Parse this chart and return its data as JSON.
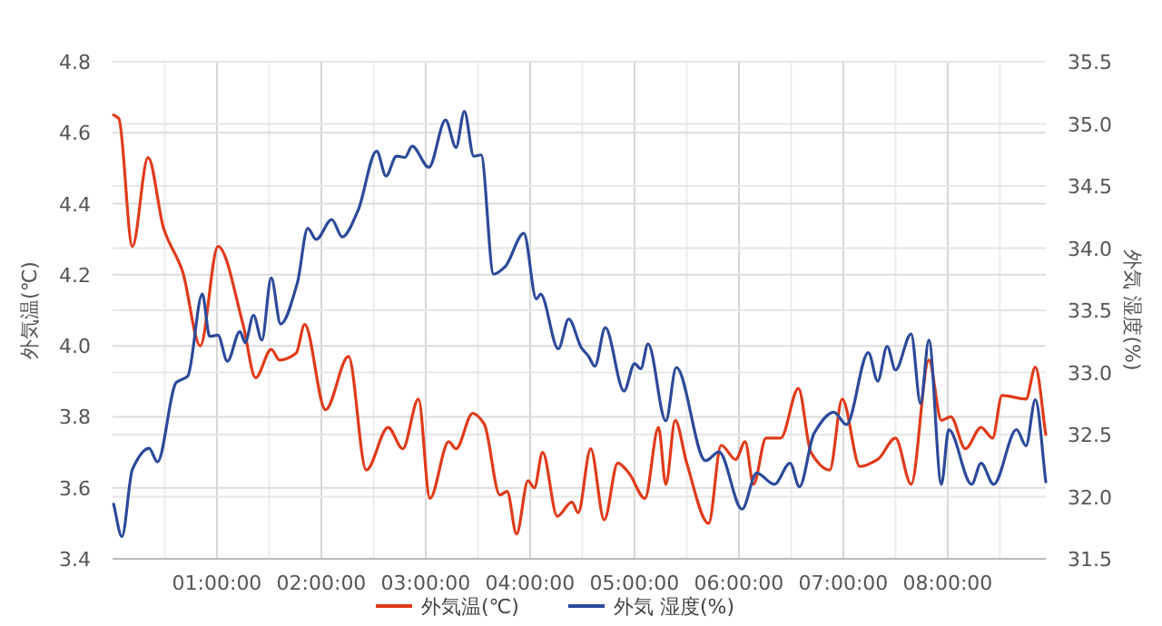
{
  "chart_data": {
    "type": "line",
    "ylabel": "外気温(℃)",
    "y2label": "外気 湿度(%)",
    "xlim": [
      0,
      8.94
    ],
    "xticks": [
      {
        "value": 0.5,
        "label": null
      },
      {
        "value": 1,
        "label": "01:00:00"
      },
      {
        "value": 1.5,
        "label": null
      },
      {
        "value": 2,
        "label": "02:00:00"
      },
      {
        "value": 2.5,
        "label": null
      },
      {
        "value": 3,
        "label": "03:00:00"
      },
      {
        "value": 3.5,
        "label": null
      },
      {
        "value": 4,
        "label": "04:00:00"
      },
      {
        "value": 4.5,
        "label": null
      },
      {
        "value": 5,
        "label": "05:00:00"
      },
      {
        "value": 5.5,
        "label": null
      },
      {
        "value": 6,
        "label": "06:00:00"
      },
      {
        "value": 6.5,
        "label": null
      },
      {
        "value": 7,
        "label": "07:00:00"
      },
      {
        "value": 7.5,
        "label": null
      },
      {
        "value": 8,
        "label": "08:00:00"
      },
      {
        "value": 8.5,
        "label": null
      }
    ],
    "ylim": [
      3.4,
      4.8
    ],
    "yticks": [
      {
        "value": 3.4,
        "label": "3.4"
      },
      {
        "value": 3.6,
        "label": "3.6"
      },
      {
        "value": 3.8,
        "label": "3.8"
      },
      {
        "value": 4.0,
        "label": "4.0"
      },
      {
        "value": 4.2,
        "label": "4.2"
      },
      {
        "value": 4.4,
        "label": "4.4"
      },
      {
        "value": 4.6,
        "label": "4.6"
      },
      {
        "value": 4.8,
        "label": "4.8"
      }
    ],
    "y2lim": [
      31.5,
      35.5
    ],
    "y2ticks": [
      {
        "value": 31.5,
        "label": "31.5"
      },
      {
        "value": 32,
        "label": "32.0"
      },
      {
        "value": 32.5,
        "label": "32.5"
      },
      {
        "value": 33,
        "label": "33.0"
      },
      {
        "value": 33.5,
        "label": "33.5"
      },
      {
        "value": 34,
        "label": "34.0"
      },
      {
        "value": 34.5,
        "label": "34.5"
      },
      {
        "value": 35,
        "label": "35.0"
      },
      {
        "value": 35.5,
        "label": "35.5"
      }
    ],
    "grid": true,
    "legend": "bottom",
    "marker": "none",
    "line_style": "solid",
    "series": [
      {
        "name": "外気温(℃)",
        "color": "#e03a1a",
        "x": [
          0.01,
          0.06,
          0.19,
          0.34,
          0.49,
          0.67,
          0.84,
          1.01,
          1.25,
          1.37,
          1.52,
          1.6,
          1.76,
          1.84,
          2.04,
          2.26,
          2.43,
          2.64,
          2.78,
          2.93,
          3.04,
          3.22,
          3.29,
          3.45,
          3.56,
          3.71,
          3.78,
          3.87,
          3.98,
          4.04,
          4.12,
          4.26,
          4.4,
          4.46,
          4.58,
          4.71,
          4.84,
          4.95,
          5.1,
          5.23,
          5.3,
          5.39,
          5.5,
          5.71,
          5.83,
          5.97,
          6.06,
          6.14,
          6.26,
          6.4,
          6.57,
          6.69,
          6.87,
          6.99,
          7.16,
          7.33,
          7.5,
          7.65,
          7.82,
          7.94,
          8.03,
          8.17,
          8.32,
          8.43,
          8.52,
          8.75,
          8.84,
          8.94
        ],
        "values": [
          4.65,
          4.64,
          4.28,
          4.53,
          4.33,
          4.21,
          4.0,
          4.28,
          4.06,
          3.91,
          3.99,
          3.96,
          3.98,
          4.06,
          3.82,
          3.97,
          3.65,
          3.77,
          3.71,
          3.85,
          3.57,
          3.73,
          3.71,
          3.81,
          3.78,
          3.58,
          3.59,
          3.47,
          3.62,
          3.6,
          3.7,
          3.52,
          3.56,
          3.53,
          3.71,
          3.51,
          3.67,
          3.64,
          3.57,
          3.77,
          3.61,
          3.79,
          3.67,
          3.5,
          3.72,
          3.68,
          3.73,
          3.61,
          3.74,
          3.74,
          3.88,
          3.7,
          3.65,
          3.85,
          3.66,
          3.68,
          3.74,
          3.61,
          3.96,
          3.79,
          3.8,
          3.71,
          3.77,
          3.74,
          3.86,
          3.85,
          3.94,
          3.75
        ]
      },
      {
        "name": "外気 湿度(%)",
        "color": "#2c4a9a",
        "axis": "y2",
        "x": [
          0.01,
          0.09,
          0.19,
          0.35,
          0.43,
          0.61,
          0.72,
          0.86,
          0.93,
          1.01,
          1.1,
          1.22,
          1.27,
          1.35,
          1.43,
          1.52,
          1.61,
          1.77,
          1.87,
          1.95,
          2.1,
          2.2,
          2.35,
          2.53,
          2.62,
          2.72,
          2.8,
          2.87,
          3.03,
          3.19,
          3.29,
          3.37,
          3.46,
          3.53,
          3.65,
          3.76,
          3.94,
          4.06,
          4.1,
          4.27,
          4.37,
          4.49,
          4.56,
          4.62,
          4.72,
          4.9,
          5.0,
          5.06,
          5.13,
          5.3,
          5.4,
          5.68,
          5.81,
          6.03,
          6.17,
          6.34,
          6.49,
          6.58,
          6.72,
          6.91,
          7.03,
          7.24,
          7.33,
          7.42,
          7.5,
          7.65,
          7.74,
          7.82,
          7.94,
          8.01,
          8.23,
          8.32,
          8.44,
          8.66,
          8.75,
          8.84,
          8.94
        ],
        "values": [
          31.94,
          31.68,
          32.22,
          32.39,
          32.28,
          32.92,
          32.97,
          33.63,
          33.29,
          33.3,
          33.09,
          33.33,
          33.24,
          33.46,
          33.26,
          33.76,
          33.39,
          33.72,
          34.16,
          34.07,
          34.23,
          34.09,
          34.3,
          34.78,
          34.58,
          34.74,
          34.73,
          34.82,
          34.65,
          35.03,
          34.81,
          35.1,
          34.74,
          34.75,
          33.79,
          33.85,
          34.12,
          33.59,
          33.63,
          33.19,
          33.43,
          33.2,
          33.13,
          33.05,
          33.36,
          32.85,
          33.07,
          33.03,
          33.23,
          32.61,
          33.04,
          32.29,
          32.36,
          31.9,
          32.19,
          32.1,
          32.27,
          32.08,
          32.51,
          32.68,
          32.58,
          33.16,
          32.93,
          33.21,
          33.02,
          33.31,
          32.75,
          33.26,
          32.1,
          32.54,
          32.1,
          32.27,
          32.1,
          32.54,
          32.41,
          32.78,
          32.12
        ]
      }
    ]
  }
}
